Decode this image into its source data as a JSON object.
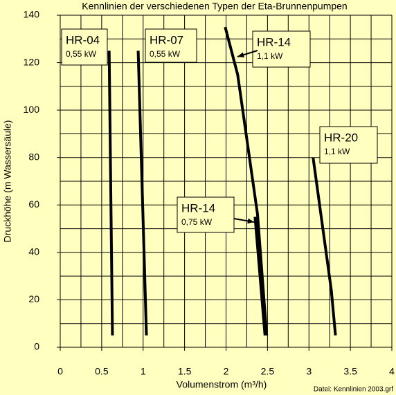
{
  "chart_data": {
    "type": "line",
    "title": "Kennlinien der verschiedenen Typen der Eta-Brunnenpumpen",
    "x_label": "Volumenstrom (m³/h)",
    "y_label": "Druckhöhe (m Wassersäule)",
    "footer": "Datei: Kennlinien 2003.grf",
    "xlim": [
      0,
      4
    ],
    "xticks": [
      0,
      0.5,
      1,
      1.5,
      2,
      2.5,
      3,
      3.5,
      4
    ],
    "ylim": [
      0,
      140
    ],
    "yticks": [
      0,
      20,
      40,
      60,
      80,
      100,
      120,
      140
    ],
    "x_minor_step": 0.25,
    "y_minor_step": 10,
    "grid": true,
    "series": [
      {
        "name": "HR-04",
        "power": "0,55 kW",
        "color": "#000000",
        "x": [
          0.59,
          0.63
        ],
        "values": [
          125,
          5
        ]
      },
      {
        "name": "HR-07",
        "power": "0,55 kW",
        "color": "#000000",
        "x": [
          0.94,
          1.04
        ],
        "values": [
          125,
          5
        ]
      },
      {
        "name": "HR-14",
        "power": "1,1 kW",
        "color": "#000000",
        "x": [
          1.99,
          2.14,
          2.38,
          2.49
        ],
        "values": [
          135,
          115,
          56,
          5
        ]
      },
      {
        "name": "HR-20",
        "power": "1,1 kW",
        "color": "#000000",
        "x": [
          3.05,
          3.27,
          3.32
        ],
        "values": [
          80,
          24,
          5
        ]
      },
      {
        "name": "HR-14",
        "power": "0,75 kW",
        "color": "#000000",
        "x": [
          2.35,
          2.47
        ],
        "values": [
          55,
          5
        ]
      }
    ]
  }
}
